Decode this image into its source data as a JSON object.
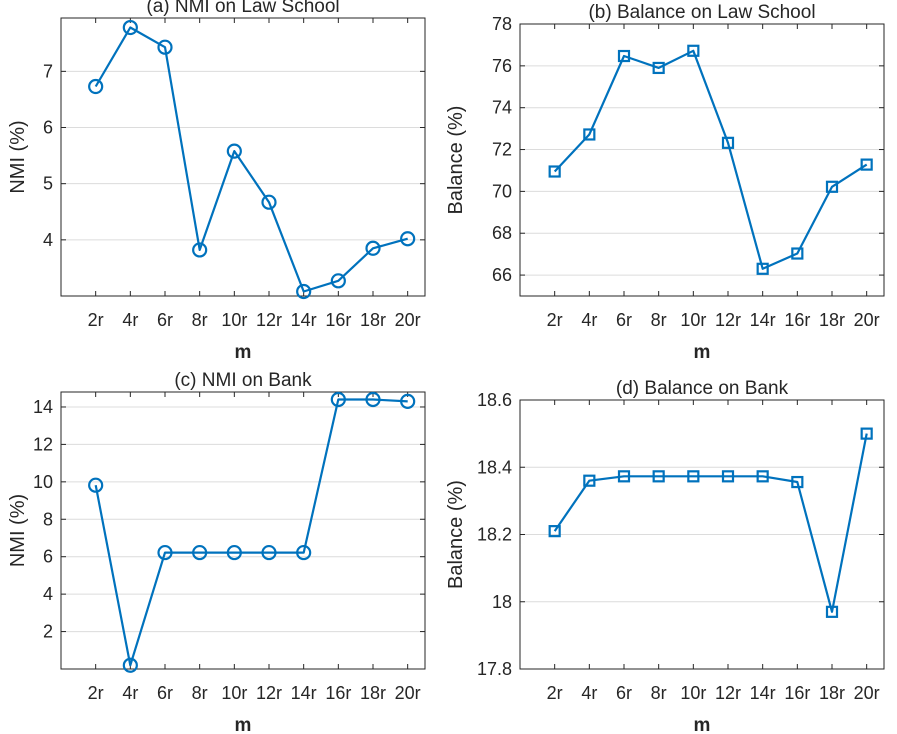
{
  "chart_data": [
    {
      "type": "line",
      "title": "(a) NMI on Law School",
      "xlabel": "m",
      "ylabel": "NMI (%)",
      "categories": [
        "2r",
        "4r",
        "6r",
        "8r",
        "10r",
        "12r",
        "14r",
        "16r",
        "18r",
        "20r"
      ],
      "values": [
        6.73,
        7.78,
        7.43,
        3.82,
        5.58,
        4.67,
        3.08,
        3.27,
        3.85,
        4.02
      ],
      "ylim": [
        3.0,
        7.95
      ],
      "yticks": [
        4,
        5,
        6,
        7
      ],
      "marker": "circle",
      "color": "#0072BD",
      "grid": true
    },
    {
      "type": "line",
      "title": "(b) Balance on Law School",
      "xlabel": "m",
      "ylabel": "Balance (%)",
      "categories": [
        "2r",
        "4r",
        "6r",
        "8r",
        "10r",
        "12r",
        "14r",
        "16r",
        "18r",
        "20r"
      ],
      "values": [
        70.95,
        72.72,
        76.47,
        75.9,
        76.72,
        72.32,
        66.3,
        67.03,
        70.22,
        71.28
      ],
      "ylim": [
        65.0,
        78.0
      ],
      "yticks": [
        66,
        68,
        70,
        72,
        74,
        76,
        78
      ],
      "marker": "square",
      "color": "#0072BD",
      "grid": true
    },
    {
      "type": "line",
      "title": "(c) NMI on Bank",
      "xlabel": "m",
      "ylabel": "NMI (%)",
      "categories": [
        "2r",
        "4r",
        "6r",
        "8r",
        "10r",
        "12r",
        "14r",
        "16r",
        "18r",
        "20r"
      ],
      "values": [
        9.82,
        0.2,
        6.22,
        6.22,
        6.22,
        6.22,
        6.22,
        14.4,
        14.4,
        14.3
      ],
      "ylim": [
        0,
        14.8
      ],
      "yticks": [
        2,
        4,
        6,
        8,
        10,
        12,
        14
      ],
      "marker": "circle",
      "color": "#0072BD",
      "grid": true
    },
    {
      "type": "line",
      "title": "(d) Balance on Bank",
      "xlabel": "m",
      "ylabel": "Balance (%)",
      "categories": [
        "2r",
        "4r",
        "6r",
        "8r",
        "10r",
        "12r",
        "14r",
        "16r",
        "18r",
        "20r"
      ],
      "values": [
        18.21,
        18.36,
        18.373,
        18.373,
        18.373,
        18.373,
        18.373,
        18.356,
        17.97,
        18.5
      ],
      "ylim": [
        17.8,
        18.6
      ],
      "yticks": [
        17.8,
        18,
        18.2,
        18.4,
        18.6
      ],
      "yticklabels": [
        "17.8",
        "18",
        "18.2",
        "18.4",
        "18.6"
      ],
      "marker": "square",
      "color": "#0072BD",
      "grid": true
    }
  ]
}
